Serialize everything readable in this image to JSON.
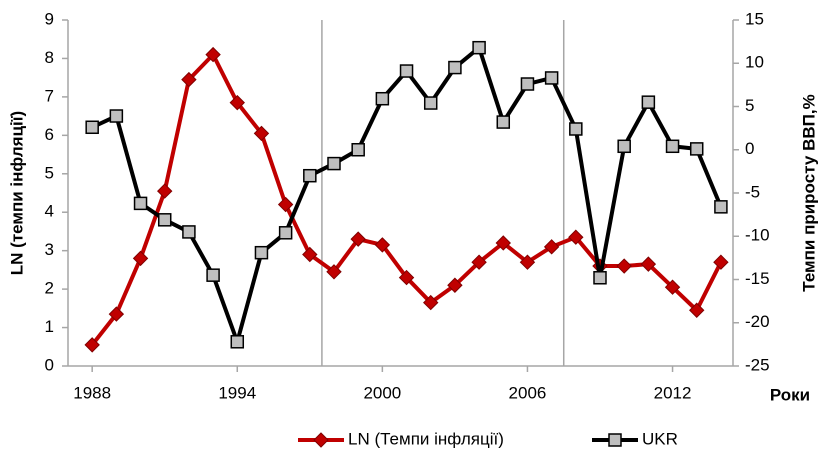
{
  "chart_data": {
    "type": "line",
    "y_label": "LN (темпи інфляції)",
    "y2_label": "Темпи приросту ВВП,%",
    "x_label": "Роки",
    "x": [
      1988,
      1989,
      1990,
      1991,
      1992,
      1993,
      1994,
      1995,
      1996,
      1997,
      1998,
      1999,
      2000,
      2001,
      2002,
      2003,
      2004,
      2005,
      2006,
      2007,
      2008,
      2009,
      2010,
      2011,
      2012,
      2013,
      2014
    ],
    "series": [
      {
        "name": "LN (Темпи інфляції)",
        "color": "#c00000",
        "marker": "diamond",
        "values": [
          0.55,
          1.35,
          2.8,
          4.55,
          7.45,
          8.1,
          6.85,
          6.05,
          4.2,
          2.9,
          2.45,
          3.3,
          3.15,
          2.3,
          1.65,
          2.1,
          2.7,
          3.2,
          2.7,
          3.1,
          3.35,
          2.6,
          2.6,
          2.65,
          2.05,
          1.45,
          2.7
        ]
      },
      {
        "name": "UKR",
        "color": "#000000",
        "marker": "square",
        "marker_color": "#bfbfbf",
        "axis": "y2",
        "values": [
          2.6,
          3.9,
          -6.2,
          -8.1,
          -9.5,
          -14.5,
          -22.2,
          -11.9,
          -9.6,
          -3.0,
          -1.6,
          0.0,
          5.9,
          9.1,
          5.4,
          9.5,
          11.8,
          3.2,
          7.6,
          8.3,
          2.4,
          -14.8,
          0.4,
          5.5,
          0.4,
          0.1,
          -6.6
        ]
      }
    ],
    "xlim": [
      1987,
      2014.5
    ],
    "xticks": [
      1988,
      1994,
      2000,
      2006,
      2012
    ],
    "vertical_lines": [
      1997.5,
      2007.5
    ],
    "ylim": [
      0,
      9
    ],
    "yticks": [
      0,
      1,
      2,
      3,
      4,
      5,
      6,
      7,
      8,
      9
    ],
    "y2lim": [
      -25,
      15
    ],
    "y2ticks": [
      -25,
      -20,
      -15,
      -10,
      -5,
      0,
      5,
      10,
      15
    ],
    "legend": "bottom"
  }
}
